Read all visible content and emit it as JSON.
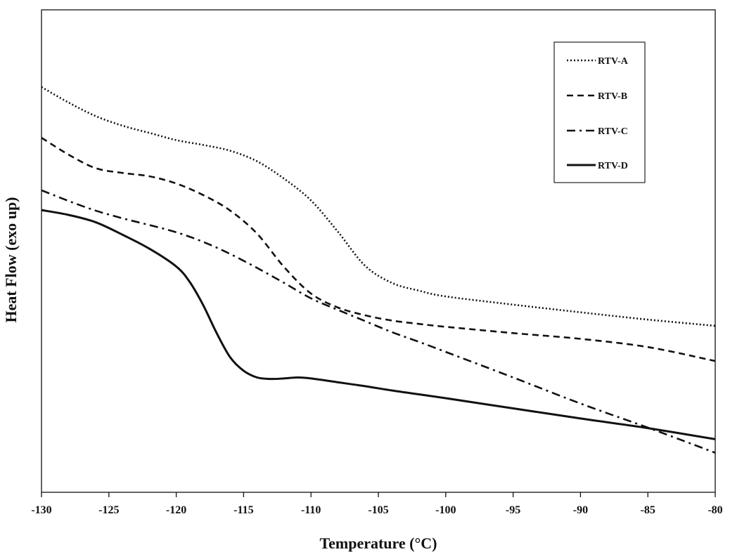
{
  "chart_data": {
    "type": "line",
    "title": "",
    "xlabel": "Temperature (°C)",
    "ylabel": "Heat Flow (exo up)",
    "xlim": [
      -130,
      -80
    ],
    "ylim": [
      0,
      100
    ],
    "x_ticks": [
      -130,
      -125,
      -120,
      -115,
      -110,
      -105,
      -100,
      -95,
      -90,
      -85,
      -80
    ],
    "x_tick_labels": [
      "-130",
      "-125",
      "-120",
      "-115",
      "-110",
      "-105",
      "-100",
      "-95",
      "-90",
      "-85",
      "-80"
    ],
    "y_tick_labels": [],
    "grid": false,
    "legend_position": "top-right",
    "series": [
      {
        "name": "RTV-A",
        "style": "dotted",
        "x": [
          -130,
          -128,
          -126,
          -124,
          -122,
          -120,
          -118,
          -116,
          -114,
          -112,
          -110,
          -108,
          -106,
          -104,
          -102,
          -100,
          -95,
          -90,
          -85,
          -80
        ],
        "y": [
          84.0,
          80.8,
          78.0,
          76.0,
          74.5,
          73.0,
          72.0,
          70.8,
          68.6,
          65.0,
          60.5,
          54.0,
          47.0,
          43.4,
          41.8,
          40.6,
          38.9,
          37.3,
          35.8,
          34.5
        ]
      },
      {
        "name": "RTV-B",
        "style": "dashed",
        "x": [
          -130,
          -128,
          -126,
          -124,
          -122,
          -120,
          -118,
          -116,
          -114,
          -112,
          -110,
          -108,
          -106,
          -104,
          -102,
          -100,
          -95,
          -90,
          -85,
          -80
        ],
        "y": [
          73.5,
          70.0,
          67.2,
          66.2,
          65.5,
          64.0,
          61.6,
          58.4,
          53.6,
          46.7,
          41.2,
          38.3,
          36.7,
          35.6,
          34.9,
          34.3,
          33.0,
          31.8,
          30.1,
          27.2
        ]
      },
      {
        "name": "RTV-C",
        "style": "dash-dot",
        "x": [
          -130,
          -128,
          -126,
          -124,
          -122,
          -120,
          -118,
          -116,
          -114,
          -112,
          -110,
          -108,
          -106,
          -104,
          -102,
          -100,
          -95,
          -90,
          -85,
          -80
        ],
        "y": [
          62.6,
          60.4,
          58.4,
          56.8,
          55.4,
          53.9,
          51.9,
          49.4,
          46.5,
          43.4,
          40.2,
          37.8,
          35.5,
          33.2,
          31.2,
          29.1,
          23.8,
          18.4,
          13.4,
          8.2
        ]
      },
      {
        "name": "RTV-D",
        "style": "solid",
        "x": [
          -130,
          -128,
          -126,
          -124,
          -122,
          -120,
          -119,
          -118,
          -117,
          -116,
          -115,
          -114,
          -113,
          -112,
          -111,
          -110,
          -108,
          -106,
          -104,
          -102,
          -100,
          -95,
          -90,
          -85,
          -80
        ],
        "y": [
          58.5,
          57.5,
          56.0,
          53.4,
          50.5,
          46.8,
          43.6,
          38.8,
          33.0,
          28.0,
          25.2,
          23.8,
          23.5,
          23.6,
          23.8,
          23.6,
          22.8,
          22.0,
          21.1,
          20.3,
          19.5,
          17.4,
          15.3,
          13.3,
          11.0
        ]
      }
    ]
  }
}
